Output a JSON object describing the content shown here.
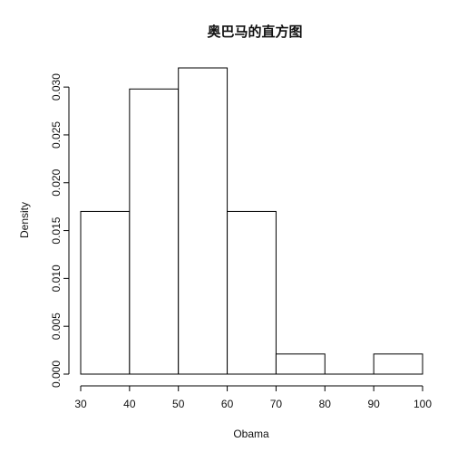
{
  "chart_data": {
    "type": "bar",
    "title": "奥巴马的直方图",
    "xlabel": "Obama",
    "ylabel": "Density",
    "bins": [
      {
        "from": 30,
        "to": 40,
        "value": 0.017
      },
      {
        "from": 40,
        "to": 50,
        "value": 0.0298
      },
      {
        "from": 50,
        "to": 60,
        "value": 0.032
      },
      {
        "from": 60,
        "to": 70,
        "value": 0.017
      },
      {
        "from": 70,
        "to": 80,
        "value": 0.0021
      },
      {
        "from": 80,
        "to": 90,
        "value": 0
      },
      {
        "from": 90,
        "to": 100,
        "value": 0.0021
      }
    ],
    "xlim": [
      30,
      100
    ],
    "ylim": [
      0,
      0.032
    ],
    "x_ticks": [
      "30",
      "40",
      "50",
      "60",
      "70",
      "80",
      "90",
      "100"
    ],
    "y_ticks": [
      "0.000",
      "0.005",
      "0.010",
      "0.015",
      "0.020",
      "0.025",
      "0.030"
    ],
    "grid": false
  }
}
